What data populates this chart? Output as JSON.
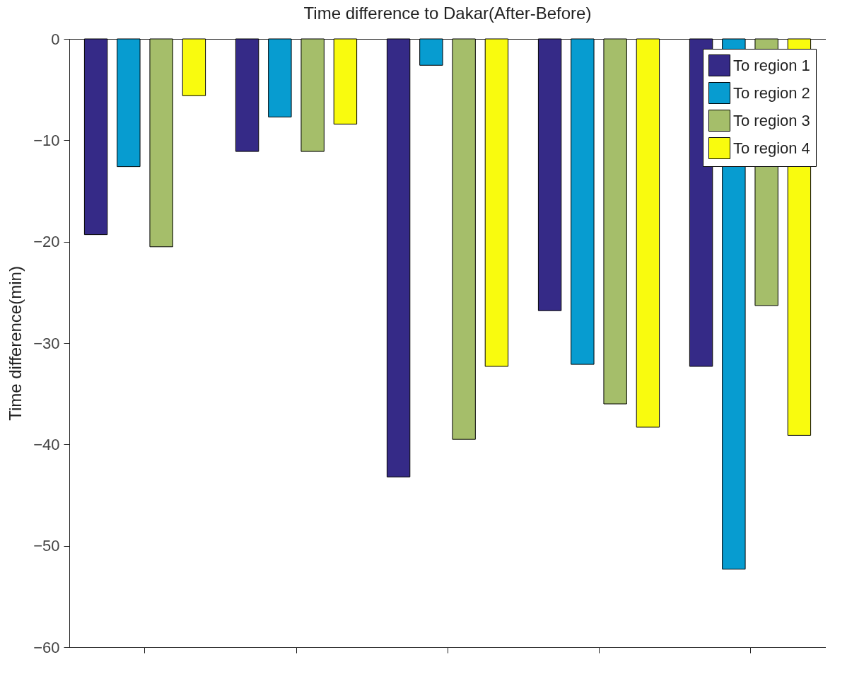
{
  "chart_data": {
    "type": "bar",
    "title": "Time difference to Dakar(After-Before)",
    "ylabel": "Time difference(min)",
    "categories": [
      null,
      null,
      null,
      null,
      null
    ],
    "series": [
      {
        "name": "To region 1",
        "color": "#352a87",
        "values": [
          -19.3,
          -11.1,
          -43.2,
          -26.8,
          -32.3
        ]
      },
      {
        "name": "To region 2",
        "color": "#079cd0",
        "values": [
          -12.6,
          -7.7,
          -2.6,
          -32.1,
          -52.3
        ]
      },
      {
        "name": "To region 3",
        "color": "#a5be6a",
        "values": [
          -20.5,
          -11.1,
          -39.5,
          -36.0,
          -26.3
        ]
      },
      {
        "name": "To region 4",
        "color": "#f9fb0e",
        "values": [
          -5.6,
          -8.4,
          -32.3,
          -38.3,
          -39.1
        ]
      }
    ],
    "ylim": [
      -60,
      0
    ],
    "yticks": [
      -60,
      -50,
      -40,
      -30,
      -20,
      -10,
      0
    ],
    "grid": false,
    "legend": "top right",
    "tick_labels": "y"
  }
}
